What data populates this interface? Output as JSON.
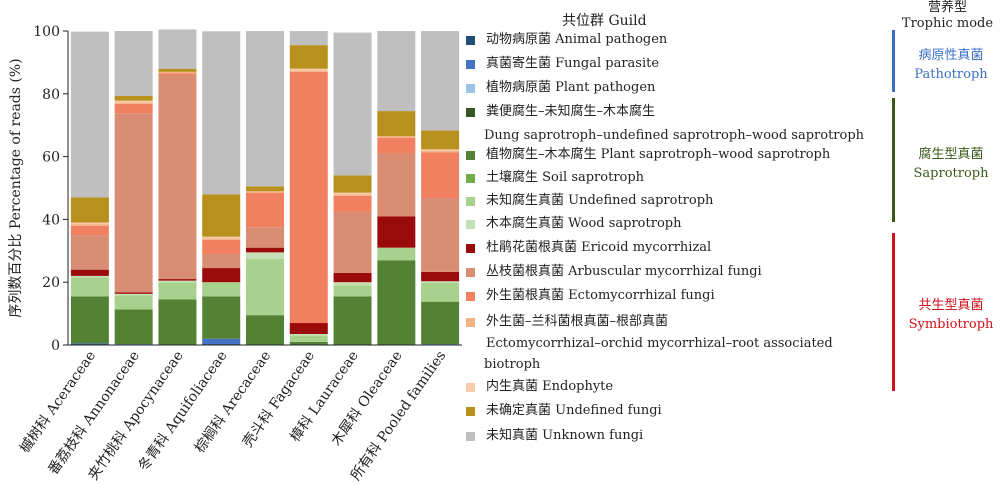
{
  "chart_data": {
    "type": "bar",
    "stacked": true,
    "ylabel": "序列数百分比 Percentage of reads (%)",
    "ylim": [
      0,
      100
    ],
    "yticks": [
      0,
      20,
      40,
      60,
      80,
      100
    ],
    "categories": [
      "槭树科 Aceraceae",
      "番荔枝科 Annonaceae",
      "夹竹桃科 Apocynaceae",
      "冬青科 Aquifoliaceae",
      "棕榈科 Arecaceae",
      "壳斗科 Fagaceae",
      "樟科 Lauraceae",
      "木犀科 Oleaceae",
      "所有科 Pooled families"
    ],
    "legend_title": "共位群 Guild",
    "series": [
      {
        "name": "动物病原菌 Animal pathogen",
        "color": "#1f4e79",
        "values": [
          0.3,
          0.2,
          0,
          0.3,
          0,
          0,
          0,
          0,
          0.2
        ]
      },
      {
        "name": "真菌寄生菌 Fungal parasite",
        "color": "#4472c4",
        "values": [
          0.2,
          0.1,
          0,
          1.7,
          0,
          0,
          0,
          0,
          0.1
        ]
      },
      {
        "name": "植物病原菌 Plant pathogen",
        "color": "#9dc3e6",
        "values": [
          0,
          0,
          0,
          0,
          0,
          0,
          0,
          0,
          0
        ]
      },
      {
        "name": "粪便腐生–未知腐生–木本腐生",
        "name2": "Dung saprotroph–undefined saprotroph–wood saprotroph",
        "color": "#375623",
        "values": [
          0,
          0,
          0,
          0,
          0,
          0,
          0,
          0,
          0
        ]
      },
      {
        "name": "植物腐生–木本腐生 Plant saprotroph–wood saprotroph",
        "color": "#548235",
        "values": [
          15,
          11,
          14.5,
          13.5,
          9.5,
          1,
          15.5,
          27,
          13.5
        ]
      },
      {
        "name": "土壤腐生 Soil saprotroph",
        "color": "#70ad47",
        "values": [
          0,
          0,
          0,
          0,
          0,
          0,
          0,
          0,
          0
        ]
      },
      {
        "name": "未知腐生真菌 Undefined saprotroph",
        "color": "#a9d18e",
        "values": [
          6,
          4.5,
          5.5,
          4.5,
          18,
          2,
          3.5,
          4,
          6
        ]
      },
      {
        "name": "木本腐生真菌 Wood saprotroph",
        "color": "#c5e0b4",
        "values": [
          0.5,
          0.5,
          0.5,
          0,
          2,
          0.5,
          1,
          0,
          0.5
        ]
      },
      {
        "name": "杜鹃花菌根真菌 Ericoid mycorrhizal",
        "color": "#9c0b0b",
        "values": [
          2,
          0.5,
          0.5,
          4.5,
          1.5,
          3.5,
          3,
          10,
          3
        ]
      },
      {
        "name": "丛枝菌根真菌 Arbuscular mycorrhizal fungi",
        "color": "#d98e73",
        "values": [
          11,
          57,
          65,
          4.5,
          6.5,
          0,
          19.5,
          20,
          23.5
        ]
      },
      {
        "name": "外生菌根真菌 Ectomycorrhizal fungi",
        "color": "#f08060",
        "values": [
          3,
          3,
          0.5,
          4.5,
          11,
          80,
          5,
          5,
          14.5
        ]
      },
      {
        "name": "外生菌–兰科菌根真菌–根部真菌",
        "name2": "Ectomycorrhizal–orchid mycorrhizal–root associated",
        "name3": "biotroph",
        "color": "#f4b183",
        "values": [
          0.5,
          0.5,
          0.5,
          0.5,
          0.5,
          0.5,
          0.5,
          0.5,
          0.5
        ]
      },
      {
        "name": "内生真菌 Endophyte",
        "color": "#f8cbad",
        "values": [
          0.5,
          0.5,
          0,
          0.5,
          0,
          0.5,
          0.5,
          0,
          0.5
        ]
      },
      {
        "name": "未确定真菌 Undefined fungi",
        "color": "#b8901e",
        "values": [
          8,
          1.5,
          1,
          13.5,
          1.5,
          7.5,
          5.5,
          8,
          6
        ]
      },
      {
        "name": "未知真菌 Unknown fungi",
        "color": "#bfbfbf",
        "values": [
          52.8,
          20.7,
          12.5,
          51.9,
          49.5,
          4.5,
          45.5,
          25.5,
          31.7
        ]
      }
    ],
    "trophic_mode": {
      "title_zh": "营养型",
      "title_en": "Trophic mode",
      "groups": [
        {
          "zh": "病原性真菌",
          "en": "Pathotroph",
          "color": "#3a6fc4"
        },
        {
          "zh": "腐生型真菌",
          "en": "Saprotroph",
          "color": "#3b5a1a"
        },
        {
          "zh": "共生型真菌",
          "en": "Symbiotroph",
          "color": "#d0101a"
        }
      ]
    }
  }
}
